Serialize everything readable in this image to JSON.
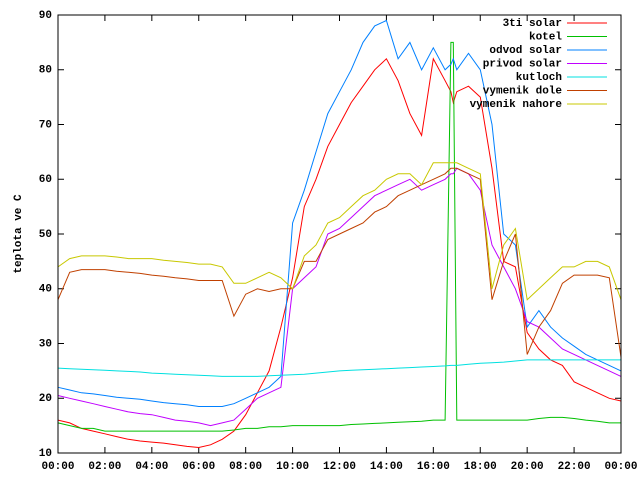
{
  "chart_data": {
    "type": "line",
    "ylabel": "teplota ve C",
    "x": [
      0,
      0.5,
      1,
      1.5,
      2,
      2.5,
      3,
      3.5,
      4,
      4.5,
      5,
      5.5,
      6,
      6.5,
      7,
      7.5,
      8,
      8.5,
      9,
      9.5,
      10,
      10.5,
      11,
      11.5,
      12,
      12.5,
      13,
      13.5,
      14,
      14.5,
      15,
      15.5,
      16,
      16.5,
      16.75,
      16.85,
      17,
      17.5,
      18,
      18.5,
      19,
      19.5,
      20,
      20.5,
      21,
      21.5,
      22,
      22.5,
      23,
      23.5,
      24
    ],
    "xlim": [
      0,
      24
    ],
    "xticks": [
      {
        "value": 0,
        "label": "00:00"
      },
      {
        "value": 2,
        "label": "02:00"
      },
      {
        "value": 4,
        "label": "04:00"
      },
      {
        "value": 6,
        "label": "06:00"
      },
      {
        "value": 8,
        "label": "08:00"
      },
      {
        "value": 10,
        "label": "10:00"
      },
      {
        "value": 12,
        "label": "12:00"
      },
      {
        "value": 14,
        "label": "14:00"
      },
      {
        "value": 16,
        "label": "16:00"
      },
      {
        "value": 18,
        "label": "18:00"
      },
      {
        "value": 20,
        "label": "20:00"
      },
      {
        "value": 22,
        "label": "22:00"
      },
      {
        "value": 24,
        "label": "00:00"
      }
    ],
    "ylim": [
      10,
      90
    ],
    "yticks": [
      10,
      20,
      30,
      40,
      50,
      60,
      70,
      80,
      90
    ],
    "legend": "top-right",
    "series": [
      {
        "name": "3ti solar",
        "color": "#ff0000",
        "values": [
          16,
          15.5,
          14.5,
          14,
          13.5,
          13,
          12.5,
          12.2,
          12,
          11.8,
          11.5,
          11.2,
          11,
          11.5,
          12.5,
          14,
          17,
          21,
          25,
          33,
          42,
          55,
          60,
          66,
          70,
          74,
          77,
          80,
          82,
          78,
          72,
          68,
          82,
          78,
          76,
          74,
          76,
          77,
          75,
          62,
          45,
          44,
          32,
          29,
          27,
          26,
          23,
          22,
          21,
          20,
          19.5
        ]
      },
      {
        "name": "kotel",
        "color": "#00c000",
        "values": [
          15.5,
          15,
          14.5,
          14.5,
          14,
          14,
          14,
          14,
          14,
          14,
          14,
          14,
          14,
          14,
          14,
          14.2,
          14.5,
          14.5,
          14.8,
          14.8,
          15,
          15,
          15,
          15,
          15,
          15.2,
          15.3,
          15.4,
          15.5,
          15.6,
          15.7,
          15.8,
          16,
          16,
          85,
          85,
          16,
          16,
          16,
          16,
          16,
          16,
          16,
          16.3,
          16.5,
          16.5,
          16.3,
          16,
          15.8,
          15.5,
          15.5
        ]
      },
      {
        "name": "odvod solar",
        "color": "#0080ff",
        "values": [
          22,
          21.5,
          21,
          20.8,
          20.5,
          20.2,
          20,
          19.8,
          19.5,
          19.2,
          19,
          18.8,
          18.5,
          18.5,
          18.5,
          19,
          20,
          21,
          22,
          24,
          52,
          58,
          65,
          72,
          76,
          80,
          85,
          88,
          89,
          82,
          85,
          80,
          84,
          80,
          81,
          82,
          80,
          83,
          80,
          70,
          50,
          48,
          33,
          36,
          33,
          31,
          29.5,
          28,
          27,
          26,
          25
        ]
      },
      {
        "name": "privod solar",
        "color": "#c000ff",
        "values": [
          20.5,
          20,
          19.5,
          19,
          18.5,
          18,
          17.5,
          17.2,
          17,
          16.5,
          16,
          15.8,
          15.5,
          15,
          15.5,
          16,
          18,
          20,
          21,
          22,
          40,
          42,
          44,
          50,
          51,
          53,
          55,
          57,
          58,
          59,
          60,
          58,
          59,
          60,
          61,
          61,
          62,
          61,
          58,
          48,
          44,
          40,
          34,
          33,
          31,
          29,
          28,
          27,
          26,
          25,
          24
        ]
      },
      {
        "name": "kutloch",
        "color": "#00e0e0",
        "values": [
          25.5,
          25.4,
          25.3,
          25.2,
          25.1,
          25,
          24.9,
          24.8,
          24.6,
          24.5,
          24.4,
          24.3,
          24.2,
          24.1,
          24,
          24,
          24,
          24,
          24.1,
          24.2,
          24.3,
          24.4,
          24.6,
          24.8,
          25,
          25.1,
          25.2,
          25.3,
          25.4,
          25.5,
          25.6,
          25.7,
          25.8,
          25.9,
          26,
          26,
          26,
          26.2,
          26.4,
          26.5,
          26.6,
          26.8,
          27,
          27,
          27,
          27,
          27,
          27,
          27,
          27,
          27
        ]
      },
      {
        "name": "vymenik dole",
        "color": "#c04000",
        "values": [
          38,
          43,
          43.5,
          43.5,
          43.5,
          43.2,
          43,
          42.8,
          42.5,
          42.3,
          42,
          41.8,
          41.5,
          41.5,
          41.5,
          35,
          39,
          40,
          39.5,
          40,
          40,
          45,
          45,
          49,
          50,
          51,
          52,
          54,
          55,
          57,
          58,
          59,
          60,
          61,
          62,
          62,
          62,
          61,
          60,
          38,
          45,
          50,
          28,
          33,
          36,
          41,
          42.5,
          42.5,
          42.5,
          42,
          27.5
        ]
      },
      {
        "name": "vymenik nahore",
        "color": "#c8c800",
        "values": [
          44,
          45.5,
          46,
          46,
          46,
          45.8,
          45.5,
          45.5,
          45.5,
          45.2,
          45,
          44.8,
          44.5,
          44.5,
          44,
          41,
          41,
          42,
          43,
          42,
          40,
          46,
          48,
          52,
          53,
          55,
          57,
          58,
          60,
          61,
          61,
          59,
          63,
          63,
          63,
          63,
          63,
          62,
          61,
          40,
          48,
          51,
          38,
          40,
          42,
          44,
          44,
          45,
          45,
          44,
          38
        ]
      }
    ]
  }
}
